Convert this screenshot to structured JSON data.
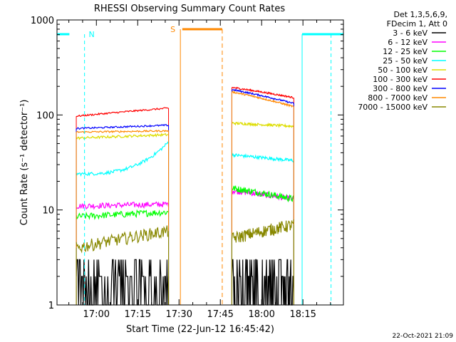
{
  "chart_data": {
    "type": "line",
    "title": "RHESSI Observing Summary Count Rates",
    "xlabel": "Start Time (22-Jun-12 16:45:42)",
    "ylabel": "Count Rate (s⁻¹ detector⁻¹)",
    "y_scale": "log",
    "ylim": [
      1,
      1000
    ],
    "x_ticks": [
      "17:00",
      "17:15",
      "17:30",
      "17:45",
      "18:00",
      "18:15"
    ],
    "x_tick_minutes": [
      14.3,
      29.3,
      44.3,
      59.3,
      74.3,
      89.3
    ],
    "xlim_minutes": [
      0,
      104
    ],
    "y_ticks": [
      "1",
      "10",
      "100",
      "1000"
    ],
    "y_tick_values": [
      1,
      10,
      100,
      1000
    ],
    "legend_header": [
      "Det 1,3,5,6,9,",
      "FDecim 1, Att 0"
    ],
    "legend_placement": "top-right outside",
    "footer": "22-Oct-2021 21:09",
    "series": [
      {
        "name": "3 - 6 keV",
        "color": "#000000",
        "seg1": [
          1.6,
          2.0
        ],
        "seg2": [
          2.0,
          2.0
        ],
        "noise": 0.5
      },
      {
        "name": "6 - 12 keV",
        "color": "#ff00ff",
        "seg1": [
          11.0,
          11.5
        ],
        "seg2": [
          16.0,
          13.0
        ],
        "noise": 0.07
      },
      {
        "name": "12 - 25 keV",
        "color": "#00ff00",
        "seg1": [
          8.5,
          9.5
        ],
        "seg2": [
          17.0,
          13.0
        ],
        "noise": 0.08
      },
      {
        "name": "25 - 50 keV",
        "color": "#00ffff",
        "seg1": [
          24,
          52
        ],
        "seg2": [
          38,
          33
        ],
        "noise": 0.04
      },
      {
        "name": "50 - 100 keV",
        "color": "#dddd00",
        "seg1": [
          57,
          62
        ],
        "seg2": [
          82,
          76
        ],
        "noise": 0.03
      },
      {
        "name": "100 - 300 keV",
        "color": "#ff0000",
        "seg1": [
          97,
          118
        ],
        "seg2": [
          195,
          152
        ],
        "noise": 0.02
      },
      {
        "name": "300 - 800 keV",
        "color": "#0000ff",
        "seg1": [
          72,
          78
        ],
        "seg2": [
          185,
          132
        ],
        "noise": 0.02
      },
      {
        "name": "800 - 7000 keV",
        "color": "#ff8800",
        "seg1": [
          66,
          68
        ],
        "seg2": [
          175,
          122
        ],
        "noise": 0.02
      },
      {
        "name": "7000 - 15000 keV",
        "color": "#888800",
        "seg1": [
          4.0,
          6.0
        ],
        "seg2": [
          5.0,
          7.0
        ],
        "noise": 0.15
      }
    ],
    "flags": [
      {
        "label": "N",
        "color": "#00ffff"
      },
      {
        "label": "S",
        "color": "#ff8800"
      }
    ]
  }
}
